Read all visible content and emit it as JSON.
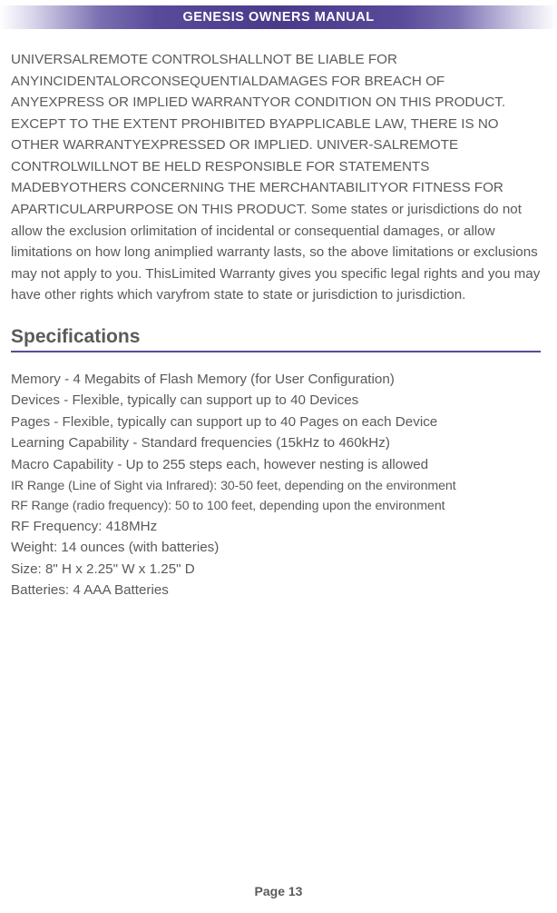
{
  "header": {
    "title": "GENESIS OWNERS MANUAL"
  },
  "warranty_paragraph": "UNIVERSALREMOTE CONTROLSHALLNOT BE LIABLE FOR ANYINCIDENTALORCONSEQUENTIALDAMAGES FOR BREACH OF ANYEXPRESS OR IMPLIED WARRANTYOR CONDITION ON THIS PRODUCT. EXCEPT TO THE EXTENT PROHIBITED BYAPPLICABLE LAW, THERE IS NO OTHER WARRANTYEXPRESSED OR IMPLIED. UNIVER-SALREMOTE CONTROLWILLNOT BE HELD RESPONSIBLE FOR STATEMENTS MADEBYOTHERS CONCERNING THE MERCHANTABILITYOR FITNESS FOR APARTICULARPURPOSE ON THIS PRODUCT. Some states or jurisdictions do not allow the exclusion orlimitation of incidental or consequential damages, or allow limitations on how long animplied warranty lasts, so the above limitations or exclusions may not apply to you. ThisLimited Warranty gives you specific legal rights and you may have other rights which varyfrom state to state or jurisdiction to jurisdiction.",
  "section_heading": "Specifications",
  "specs": {
    "memory": "Memory - 4 Megabits of Flash Memory (for User Configuration)",
    "devices": "Devices - Flexible, typically can support up to 40 Devices",
    "pages": "Pages - Flexible, typically can support up to 40 Pages on each Device",
    "learning": "Learning Capability - Standard frequencies (15kHz to 460kHz)",
    "macro": "Macro Capability - Up to 255 steps each, however nesting is allowed",
    "ir_range": "IR Range (Line of Sight via Infrared): 30-50 feet, depending on the environment",
    "rf_range": "RF Range (radio frequency): 50 to 100 feet, depending upon the environment",
    "rf_freq": "RF Frequency: 418MHz",
    "weight": "Weight: 14 ounces (with batteries)",
    "size": "Size: 8\" H x 2.25\" W x 1.25\" D",
    "batteries": "Batteries: 4 AAA Batteries"
  },
  "page_number": "Page 13",
  "colors": {
    "text": "#5a5a5a",
    "rule": "#5a4a9a",
    "header_mid": "#4a3a8a",
    "background": "#ffffff"
  },
  "typography": {
    "body_fontsize": 15.2,
    "heading_fontsize": 21,
    "header_title_fontsize": 14.5,
    "page_number_fontsize": 14,
    "line_height": 1.55
  }
}
